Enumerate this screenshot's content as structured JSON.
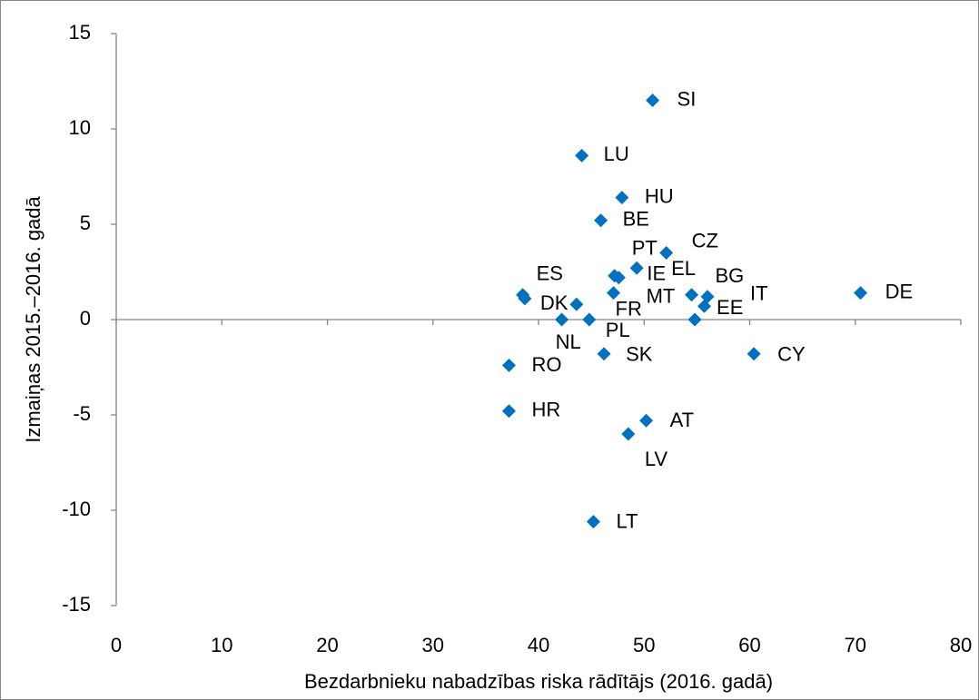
{
  "chart_data": {
    "type": "scatter",
    "xlabel": "Bezdarbnieku nabadzības riska rādītājs (2016. gadā)",
    "ylabel": "Izmaiņas 2015.–2016. gadā",
    "xlim": [
      0,
      80
    ],
    "xticks": [
      0,
      10,
      20,
      30,
      40,
      50,
      60,
      70,
      80
    ],
    "ylim": [
      -15,
      15
    ],
    "yticks": [
      -15,
      -10,
      -5,
      0,
      5,
      10,
      15
    ],
    "series": [
      {
        "color": "#0070c0",
        "labels": [
          "SI",
          "LU",
          "HU",
          "BE",
          "CZ",
          "EL",
          "PT",
          "IE",
          "ES",
          null,
          "DK",
          "FR",
          "MT",
          "BG",
          "IT",
          "EE",
          "DE",
          "NL",
          "PL",
          "SK",
          "CY",
          "RO",
          "HR",
          "AT",
          "LV",
          "LT"
        ],
        "x": [
          50.8,
          44.1,
          47.9,
          45.9,
          52.1,
          49.3,
          47.2,
          47.6,
          38.5,
          38.7,
          43.6,
          47.1,
          54.5,
          55.7,
          56.0,
          54.8,
          70.5,
          42.2,
          44.8,
          46.2,
          60.4,
          37.2,
          37.2,
          50.2,
          48.5,
          45.2
        ],
        "values": [
          11.5,
          8.6,
          6.4,
          5.2,
          3.5,
          2.7,
          2.3,
          2.2,
          1.3,
          1.1,
          0.8,
          1.4,
          1.3,
          0.7,
          1.2,
          0,
          1.4,
          0,
          0,
          -1.8,
          -1.8,
          -2.4,
          -4.8,
          -5.3,
          -6.0,
          -10.6
        ]
      }
    ]
  }
}
